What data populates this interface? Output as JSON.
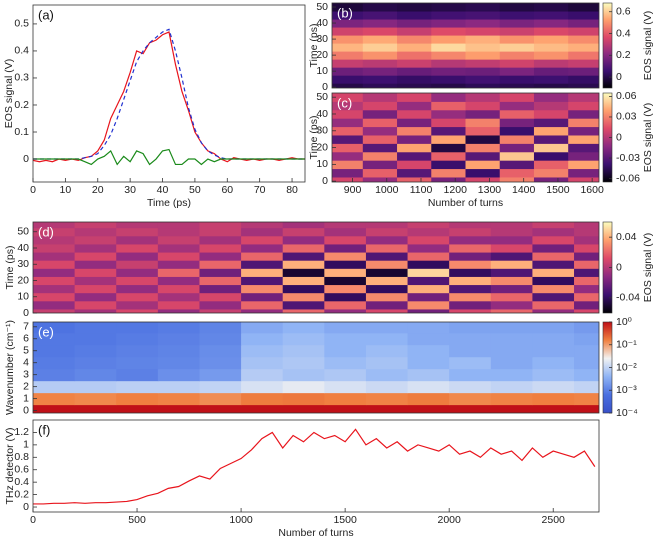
{
  "chart_data": [
    {
      "type": "line",
      "label": "(a)",
      "xlabel": "Time (ps)",
      "ylabel": "EOS signal (V)",
      "xlim": [
        0,
        84
      ],
      "xticks": [
        0,
        10,
        20,
        30,
        40,
        50,
        60,
        70,
        80
      ],
      "ylim": [
        -0.085,
        0.57
      ],
      "yticks": [
        0,
        0.1,
        0.2,
        0.3,
        0.4,
        0.5
      ],
      "x": [
        0,
        2,
        4,
        6,
        8,
        10,
        12,
        14,
        16,
        18,
        20,
        22,
        24,
        26,
        28,
        30,
        32,
        34,
        36,
        38,
        40,
        42,
        44,
        46,
        48,
        50,
        52,
        54,
        56,
        58,
        60,
        62,
        64,
        66,
        68,
        70,
        72,
        74,
        76,
        78,
        80,
        82,
        84
      ],
      "series": [
        {
          "color": "#e8141c",
          "style": "solid",
          "values": [
            -0.005,
            -0.01,
            -0.005,
            -0.01,
            0,
            -0.005,
            0,
            -0.005,
            0.005,
            0.01,
            0.03,
            0.07,
            0.15,
            0.2,
            0.25,
            0.32,
            0.4,
            0.39,
            0.43,
            0.44,
            0.46,
            0.47,
            0.35,
            0.25,
            0.18,
            0.1,
            0.06,
            0.03,
            0.02,
            0,
            -0.01,
            0.005,
            0,
            -0.005,
            0,
            -0.005,
            0,
            0,
            -0.005,
            0,
            0.005,
            0,
            0
          ]
        },
        {
          "color": "#2030d0",
          "style": "dashed",
          "values": [
            0,
            0,
            0,
            0,
            0,
            0,
            0,
            0,
            0.005,
            0.01,
            0.02,
            0.05,
            0.09,
            0.15,
            0.22,
            0.29,
            0.36,
            0.4,
            0.43,
            0.45,
            0.47,
            0.48,
            0.4,
            0.3,
            0.19,
            0.11,
            0.06,
            0.03,
            0.015,
            0.005,
            0,
            0,
            0,
            0,
            0,
            0,
            0,
            0,
            0,
            0,
            0,
            0,
            0
          ]
        },
        {
          "color": "#1a8a1a",
          "style": "solid",
          "values": [
            0,
            0,
            0,
            0,
            0,
            0,
            0,
            0,
            -0.01,
            -0.02,
            0,
            0.01,
            0.03,
            -0.02,
            0.01,
            -0.01,
            0.03,
            0.02,
            -0.02,
            0,
            0.03,
            0.035,
            -0.02,
            -0.02,
            0,
            0,
            -0.02,
            0,
            -0.01,
            0,
            0,
            0,
            0,
            0,
            0,
            0,
            0,
            0,
            0,
            0,
            0,
            0,
            0
          ]
        }
      ]
    },
    {
      "type": "heatmap",
      "label": "(b)",
      "ylabel": "Time (ps)",
      "xlim": [
        840,
        1620
      ],
      "ylim": [
        -0.5,
        52.5
      ],
      "yticks": [
        0,
        10,
        20,
        30,
        40,
        50
      ],
      "x": [
        880,
        980,
        1080,
        1180,
        1280,
        1380,
        1480,
        1580
      ],
      "y": [
        0,
        5,
        10,
        15,
        20,
        25,
        30,
        35,
        40,
        45,
        50
      ],
      "z": [
        [
          0,
          0.02,
          0.01,
          0,
          0.02,
          0.01,
          0,
          0.01
        ],
        [
          0.05,
          0.06,
          0.04,
          0.05,
          0.07,
          0.05,
          0.06,
          0.04
        ],
        [
          0.15,
          0.17,
          0.14,
          0.16,
          0.15,
          0.18,
          0.14,
          0.15
        ],
        [
          0.32,
          0.3,
          0.33,
          0.29,
          0.31,
          0.34,
          0.3,
          0.32
        ],
        [
          0.46,
          0.5,
          0.44,
          0.48,
          0.52,
          0.47,
          0.5,
          0.45
        ],
        [
          0.56,
          0.6,
          0.55,
          0.62,
          0.58,
          0.6,
          0.57,
          0.55
        ],
        [
          0.5,
          0.54,
          0.48,
          0.52,
          0.55,
          0.5,
          0.53,
          0.49
        ],
        [
          0.34,
          0.36,
          0.32,
          0.37,
          0.35,
          0.33,
          0.36,
          0.34
        ],
        [
          0.18,
          0.2,
          0.17,
          0.19,
          0.21,
          0.18,
          0.2,
          0.17
        ],
        [
          0.06,
          0.08,
          0.05,
          0.07,
          0.08,
          0.06,
          0.07,
          0.05
        ],
        [
          -0.02,
          0,
          -0.01,
          0,
          0.01,
          -0.01,
          0,
          -0.02
        ]
      ],
      "colormap": [
        "#000004",
        "#3b0f70",
        "#8c2981",
        "#de4968",
        "#fe9f6d",
        "#fcfdbf"
      ],
      "colorbar": {
        "label": "EOS signal (V)",
        "lim": [
          -0.1,
          0.68
        ],
        "ticks": [
          0,
          0.2,
          0.4,
          0.6
        ]
      }
    },
    {
      "type": "heatmap",
      "label": "(c)",
      "xlabel": "Number of turns",
      "ylabel": "Time (ps)",
      "xlim": [
        840,
        1620
      ],
      "xticks": [
        900,
        1000,
        1100,
        1200,
        1300,
        1400,
        1500,
        1600
      ],
      "ylim": [
        -0.5,
        52.5
      ],
      "yticks": [
        0,
        10,
        20,
        30,
        40,
        50
      ],
      "x": [
        880,
        980,
        1080,
        1180,
        1280,
        1380,
        1480,
        1580
      ],
      "y": [
        0,
        5,
        10,
        15,
        20,
        25,
        30,
        35,
        40,
        45,
        50
      ],
      "z": [
        [
          0.01,
          -0.01,
          0.02,
          -0.02,
          0.01,
          0.03,
          -0.02,
          0.01
        ],
        [
          -0.02,
          0.02,
          -0.03,
          0.03,
          -0.04,
          0.02,
          0.03,
          -0.02
        ],
        [
          0.03,
          -0.02,
          0.01,
          -0.04,
          0.04,
          -0.03,
          0.02,
          0.04
        ],
        [
          -0.01,
          0.03,
          -0.03,
          0.02,
          -0.03,
          0.05,
          -0.04,
          -0.02
        ],
        [
          0.02,
          -0.03,
          0.04,
          -0.05,
          0.03,
          -0.02,
          0.05,
          -0.03
        ],
        [
          -0.03,
          0.02,
          -0.02,
          0.04,
          -0.05,
          0.03,
          -0.03,
          0.04
        ],
        [
          0.02,
          -0.01,
          0.03,
          -0.03,
          0.02,
          -0.04,
          0.04,
          -0.02
        ],
        [
          -0.01,
          0.02,
          -0.02,
          0.01,
          0.03,
          -0.02,
          -0.03,
          0.03
        ],
        [
          0.01,
          -0.02,
          0.01,
          -0.01,
          -0.02,
          0.02,
          0.01,
          -0.02
        ],
        [
          0,
          0.01,
          -0.01,
          0.02,
          0.01,
          -0.01,
          0,
          0.01
        ],
        [
          0.01,
          0,
          0.01,
          -0.01,
          0,
          0.01,
          -0.01,
          0
        ]
      ],
      "colormap": [
        "#000004",
        "#3b0f70",
        "#8c2981",
        "#de4968",
        "#fe9f6d",
        "#fcfdbf"
      ],
      "colorbar": {
        "label": "EOS signal (V)",
        "lim": [
          -0.065,
          0.065
        ],
        "ticks": [
          -0.06,
          -0.03,
          0,
          0.03,
          0.06
        ]
      }
    },
    {
      "type": "heatmap",
      "label": "(d)",
      "ylabel": "Time (ps)",
      "xlim": [
        0,
        2720
      ],
      "ylim": [
        0,
        56
      ],
      "yticks": [
        0,
        10,
        20,
        30,
        40,
        50
      ],
      "x": [
        100,
        300,
        500,
        700,
        900,
        1100,
        1300,
        1500,
        1700,
        1900,
        2100,
        2300,
        2500,
        2700
      ],
      "y": [
        0,
        5,
        10,
        15,
        20,
        25,
        30,
        35,
        40,
        45,
        50,
        55
      ],
      "z": [
        [
          0.005,
          -0.005,
          0.01,
          -0.01,
          0.005,
          -0.01,
          0.02,
          -0.01,
          0.01,
          -0.02,
          0.01,
          0.02,
          -0.01,
          0.01
        ],
        [
          -0.01,
          0.01,
          -0.005,
          0.01,
          -0.01,
          0.02,
          -0.03,
          0.02,
          -0.02,
          0.03,
          -0.02,
          -0.01,
          0.02,
          -0.02
        ],
        [
          0.01,
          -0.01,
          0.01,
          -0.005,
          0.01,
          -0.02,
          0.03,
          -0.04,
          0.03,
          -0.02,
          0.03,
          0.02,
          -0.03,
          0.02
        ],
        [
          -0.005,
          0.01,
          -0.01,
          0.01,
          -0.02,
          0.03,
          -0.04,
          0.03,
          -0.04,
          0.04,
          -0.03,
          -0.02,
          0.03,
          -0.01
        ],
        [
          0.01,
          -0.005,
          0.01,
          -0.01,
          0.02,
          -0.03,
          0.04,
          -0.05,
          0.04,
          -0.03,
          0.04,
          0.03,
          -0.04,
          0.02
        ],
        [
          -0.01,
          0.01,
          -0.01,
          0.02,
          -0.02,
          0.04,
          -0.05,
          0.04,
          -0.05,
          0.05,
          -0.04,
          -0.03,
          0.04,
          -0.03
        ],
        [
          0.01,
          -0.01,
          0.005,
          -0.01,
          0.02,
          -0.03,
          0.04,
          -0.04,
          0.03,
          -0.04,
          0.03,
          0.04,
          -0.03,
          0.02
        ],
        [
          -0.005,
          0.01,
          -0.01,
          0.01,
          -0.01,
          0.02,
          -0.03,
          0.03,
          -0.03,
          0.02,
          -0.02,
          -0.03,
          0.02,
          -0.02
        ],
        [
          0.005,
          -0.005,
          0.01,
          -0.005,
          0.01,
          -0.01,
          0.02,
          -0.02,
          0.02,
          -0.01,
          0.02,
          0.01,
          -0.02,
          0.01
        ],
        [
          0,
          0.005,
          -0.005,
          0.005,
          -0.005,
          0.01,
          -0.01,
          0.01,
          -0.01,
          0.01,
          -0.01,
          -0.01,
          0.01,
          -0.005
        ],
        [
          0.005,
          0,
          0.005,
          0,
          0.005,
          -0.005,
          0.005,
          -0.005,
          0.005,
          0,
          0.005,
          0,
          -0.005,
          0
        ],
        [
          0,
          0.005,
          0,
          0,
          0.005,
          0,
          -0.005,
          0,
          0,
          0.005,
          0,
          0,
          0.005,
          0
        ]
      ],
      "colormap": [
        "#000004",
        "#3b0f70",
        "#8c2981",
        "#de4968",
        "#fe9f6d",
        "#fcfdbf"
      ],
      "colorbar": {
        "label": "EOS signal (V)",
        "lim": [
          -0.06,
          0.06
        ],
        "ticks": [
          -0.04,
          0,
          0.04
        ]
      }
    },
    {
      "type": "heatmap",
      "label": "(e)",
      "ylabel": "Wavenumber (cm⁻¹)",
      "xlim": [
        0,
        2720
      ],
      "ylim": [
        -0.2,
        7.4
      ],
      "yticks": [
        0,
        1,
        2,
        3,
        4,
        5,
        6,
        7
      ],
      "x": [
        100,
        300,
        500,
        700,
        900,
        1100,
        1300,
        1500,
        1700,
        1900,
        2100,
        2300,
        2500,
        2700
      ],
      "y": [
        0,
        1,
        2,
        3,
        4,
        5,
        6,
        7
      ],
      "z": [
        [
          1,
          1,
          1,
          1,
          1,
          1,
          1,
          1,
          1,
          1,
          1,
          1,
          1,
          1
        ],
        [
          0.15,
          0.14,
          0.16,
          0.15,
          0.13,
          0.17,
          0.18,
          0.16,
          0.15,
          0.17,
          0.14,
          0.15,
          0.16,
          0.15
        ],
        [
          0.008,
          0.008,
          0.009,
          0.009,
          0.01,
          0.015,
          0.02,
          0.015,
          0.012,
          0.015,
          0.012,
          0.01,
          0.012,
          0.01
        ],
        [
          0.001,
          0.0012,
          0.001,
          0.0015,
          0.002,
          0.008,
          0.006,
          0.007,
          0.005,
          0.006,
          0.004,
          0.004,
          0.005,
          0.004
        ],
        [
          0.0009,
          0.001,
          0.0011,
          0.0012,
          0.0015,
          0.006,
          0.007,
          0.005,
          0.006,
          0.004,
          0.005,
          0.003,
          0.004,
          0.003
        ],
        [
          0.0008,
          0.0009,
          0.001,
          0.0011,
          0.0014,
          0.005,
          0.006,
          0.004,
          0.005,
          0.004,
          0.003,
          0.003,
          0.003,
          0.003
        ],
        [
          0.0008,
          0.0008,
          0.0009,
          0.001,
          0.0012,
          0.004,
          0.005,
          0.004,
          0.004,
          0.003,
          0.003,
          0.003,
          0.003,
          0.0025
        ],
        [
          0.0007,
          0.0008,
          0.0008,
          0.0009,
          0.0011,
          0.003,
          0.004,
          0.003,
          0.003,
          0.003,
          0.0025,
          0.0025,
          0.0025,
          0.002
        ]
      ],
      "colormap": [
        "#3850c8",
        "#4a6fe0",
        "#90b4f5",
        "#f2f2f2",
        "#f08040",
        "#c01018"
      ],
      "colorbar": {
        "log": true,
        "lim": [
          0.0001,
          1
        ],
        "ticks": [
          {
            "value": 1,
            "label": "10⁰"
          },
          {
            "value": 0.1,
            "label": "10⁻¹"
          },
          {
            "value": 0.01,
            "label": "10⁻²"
          },
          {
            "value": 0.001,
            "label": "10⁻³"
          },
          {
            "value": 0.0001,
            "label": "10⁻⁴"
          }
        ]
      }
    },
    {
      "type": "line",
      "label": "(f)",
      "xlabel": "Number of turns",
      "ylabel": "THz detector (V)",
      "xlim": [
        0,
        2720
      ],
      "xticks": [
        0,
        500,
        1000,
        1500,
        2000,
        2500
      ],
      "ylim": [
        -0.08,
        1.4
      ],
      "yticks": [
        0,
        0.2,
        0.4,
        0.6,
        0.8,
        1,
        1.2
      ],
      "x": [
        0,
        50,
        100,
        150,
        200,
        250,
        300,
        350,
        400,
        450,
        500,
        550,
        600,
        650,
        700,
        750,
        800,
        850,
        900,
        950,
        1000,
        1050,
        1100,
        1150,
        1200,
        1250,
        1300,
        1350,
        1400,
        1450,
        1500,
        1550,
        1600,
        1650,
        1700,
        1750,
        1800,
        1850,
        1900,
        1950,
        2000,
        2050,
        2100,
        2150,
        2200,
        2250,
        2300,
        2350,
        2400,
        2450,
        2500,
        2550,
        2600,
        2650,
        2700
      ],
      "series": [
        {
          "color": "#e8141c",
          "style": "solid",
          "values": [
            0.05,
            0.05,
            0.06,
            0.06,
            0.07,
            0.06,
            0.07,
            0.07,
            0.08,
            0.09,
            0.12,
            0.18,
            0.22,
            0.3,
            0.33,
            0.42,
            0.5,
            0.45,
            0.62,
            0.7,
            0.78,
            0.92,
            1.1,
            1.2,
            0.95,
            1.15,
            1.05,
            1.2,
            1.1,
            1.15,
            1.05,
            1.25,
            1,
            1.1,
            0.95,
            1.05,
            0.9,
            1,
            0.95,
            0.9,
            1,
            0.85,
            0.9,
            0.8,
            0.95,
            0.85,
            0.9,
            0.75,
            0.95,
            0.8,
            0.9,
            0.85,
            0.8,
            0.9,
            0.65
          ]
        }
      ]
    }
  ]
}
